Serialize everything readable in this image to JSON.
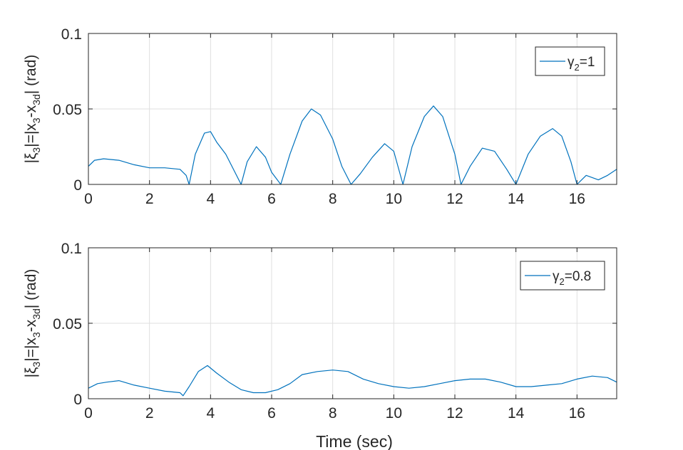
{
  "figure": {
    "xlabel": "Time (sec)"
  },
  "chart_data": [
    {
      "type": "line",
      "ylabel": "|ξ3|=|x3-x3d| (rad)",
      "xlim": [
        0,
        17.3
      ],
      "ylim": [
        0,
        0.1
      ],
      "xticks": [
        "0",
        "2",
        "4",
        "6",
        "8",
        "10",
        "12",
        "14",
        "16"
      ],
      "yticks": [
        "0",
        "0.05",
        "0.1"
      ],
      "grid": true,
      "legend_position": "top-right",
      "series": [
        {
          "name": "γ2=1",
          "color": "#0072BD",
          "x": [
            0,
            0.2,
            0.5,
            1.0,
            1.5,
            2.0,
            2.5,
            3.0,
            3.2,
            3.3,
            3.5,
            3.8,
            4.0,
            4.2,
            4.5,
            4.8,
            5.0,
            5.2,
            5.5,
            5.8,
            6.0,
            6.3,
            6.6,
            7.0,
            7.3,
            7.6,
            8.0,
            8.3,
            8.6,
            8.9,
            9.3,
            9.7,
            10.0,
            10.3,
            10.6,
            11.0,
            11.3,
            11.6,
            12.0,
            12.2,
            12.5,
            12.9,
            13.3,
            13.7,
            14.0,
            14.4,
            14.8,
            15.2,
            15.5,
            15.8,
            16.0,
            16.3,
            16.7,
            17.0,
            17.3
          ],
          "y": [
            0.012,
            0.016,
            0.017,
            0.016,
            0.013,
            0.011,
            0.011,
            0.01,
            0.006,
            0.0,
            0.02,
            0.034,
            0.035,
            0.028,
            0.02,
            0.008,
            0.0,
            0.015,
            0.025,
            0.018,
            0.008,
            0.0,
            0.02,
            0.042,
            0.05,
            0.046,
            0.03,
            0.012,
            0.0,
            0.007,
            0.018,
            0.027,
            0.022,
            0.0,
            0.025,
            0.045,
            0.052,
            0.045,
            0.02,
            0.0,
            0.012,
            0.024,
            0.022,
            0.01,
            0.0,
            0.02,
            0.032,
            0.037,
            0.032,
            0.015,
            0.0,
            0.006,
            0.003,
            0.006,
            0.01
          ]
        }
      ]
    },
    {
      "type": "line",
      "ylabel": "|ξ3|=|x3-x3d| (rad)",
      "xlim": [
        0,
        17.3
      ],
      "ylim": [
        0,
        0.1
      ],
      "xticks": [
        "0",
        "2",
        "4",
        "6",
        "8",
        "10",
        "12",
        "14",
        "16"
      ],
      "yticks": [
        "0",
        "0.05",
        "0.1"
      ],
      "grid": true,
      "legend_position": "top-right",
      "series": [
        {
          "name": "γ2=0.8",
          "color": "#0072BD",
          "x": [
            0,
            0.3,
            0.6,
            1.0,
            1.5,
            2.0,
            2.5,
            3.0,
            3.1,
            3.3,
            3.6,
            3.9,
            4.2,
            4.6,
            5.0,
            5.4,
            5.8,
            6.2,
            6.6,
            7.0,
            7.5,
            8.0,
            8.5,
            9.0,
            9.5,
            10.0,
            10.5,
            11.0,
            11.5,
            12.0,
            12.5,
            13.0,
            13.5,
            14.0,
            14.5,
            15.0,
            15.5,
            16.0,
            16.5,
            17.0,
            17.3
          ],
          "y": [
            0.007,
            0.01,
            0.011,
            0.012,
            0.009,
            0.007,
            0.005,
            0.004,
            0.002,
            0.008,
            0.018,
            0.022,
            0.017,
            0.011,
            0.006,
            0.004,
            0.004,
            0.006,
            0.01,
            0.016,
            0.018,
            0.019,
            0.018,
            0.013,
            0.01,
            0.008,
            0.007,
            0.008,
            0.01,
            0.012,
            0.013,
            0.013,
            0.011,
            0.008,
            0.008,
            0.009,
            0.01,
            0.013,
            0.015,
            0.014,
            0.011
          ]
        }
      ]
    }
  ]
}
